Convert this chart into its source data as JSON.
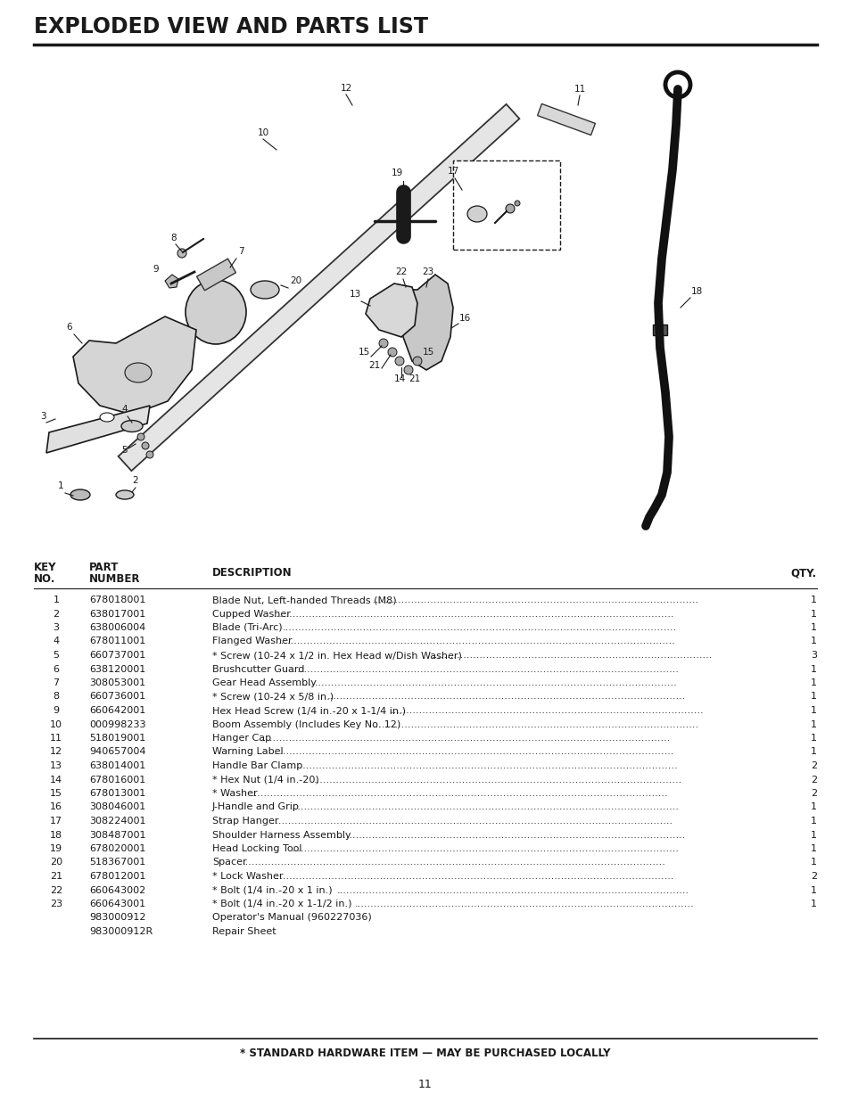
{
  "title": "EXPLODED VIEW AND PARTS LIST",
  "page_number": "11",
  "footer_note": "* STANDARD HARDWARE ITEM — MAY BE PURCHASED LOCALLY",
  "parts": [
    [
      "1",
      "678018001",
      "Blade Nut, Left-handed Threads (M8)",
      "1"
    ],
    [
      "2",
      "638017001",
      "Cupped Washer",
      "1"
    ],
    [
      "3",
      "638006004",
      "Blade (Tri-Arc)",
      "1"
    ],
    [
      "4",
      "678011001",
      "Flanged Washer",
      "1"
    ],
    [
      "5",
      "660737001",
      "* Screw (10-24 x 1/2 in. Hex Head w/Dish Washer)",
      "3"
    ],
    [
      "6",
      "638120001",
      "Brushcutter Guard",
      "1"
    ],
    [
      "7",
      "308053001",
      "Gear Head Assembly",
      "1"
    ],
    [
      "8",
      "660736001",
      "* Screw (10-24 x 5/8 in.)",
      "1"
    ],
    [
      "9",
      "660642001",
      "Hex Head Screw (1/4 in.-20 x 1-1/4 in.)",
      "1"
    ],
    [
      "10",
      "000998233",
      "Boom Assembly (Includes Key No. 12)",
      "1"
    ],
    [
      "11",
      "518019001",
      "Hanger Cap",
      "1"
    ],
    [
      "12",
      "940657004",
      "Warning Label",
      "1"
    ],
    [
      "13",
      "638014001",
      "Handle Bar Clamp",
      "2"
    ],
    [
      "14",
      "678016001",
      "* Hex Nut (1/4 in.-20)",
      "2"
    ],
    [
      "15",
      "678013001",
      "* Washer",
      "2"
    ],
    [
      "16",
      "308046001",
      "J-Handle and Grip",
      "1"
    ],
    [
      "17",
      "308224001",
      "Strap Hanger",
      "1"
    ],
    [
      "18",
      "308487001",
      "Shoulder Harness Assembly",
      "1"
    ],
    [
      "19",
      "678020001",
      "Head Locking Tool",
      "1"
    ],
    [
      "20",
      "518367001",
      "Spacer",
      "1"
    ],
    [
      "21",
      "678012001",
      "* Lock Washer",
      "2"
    ],
    [
      "22",
      "660643002",
      "* Bolt (1/4 in.-20 x 1 in.)",
      "1"
    ],
    [
      "23",
      "660643001",
      "* Bolt (1/4 in.-20 x 1-1/2 in.)",
      "1"
    ],
    [
      "",
      "983000912",
      "Operator's Manual (960227036)",
      ""
    ],
    [
      "",
      "983000912R",
      "Repair Sheet",
      ""
    ]
  ],
  "bg_color": "#ffffff",
  "text_color": "#1a1a1a",
  "line_color": "#1a1a1a"
}
